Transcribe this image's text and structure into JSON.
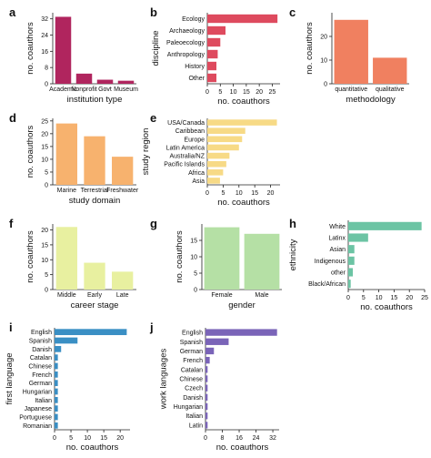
{
  "chart_data": [
    {
      "id": "a",
      "type": "bar",
      "orientation": "vertical",
      "color": "#b0255e",
      "categories": [
        "Academic",
        "Nonprofit",
        "Govt",
        "Museum"
      ],
      "values": [
        33,
        5,
        2,
        1.5
      ],
      "xlabel": "institution type",
      "ylabel": "no. coauthors",
      "ylim": [
        0,
        35
      ],
      "yticks": [
        0,
        8,
        16,
        24,
        32
      ]
    },
    {
      "id": "b",
      "type": "bar",
      "orientation": "horizontal",
      "color": "#de4a5e",
      "categories": [
        "Ecology",
        "Archaeology",
        "Paleoecology",
        "Anthropology",
        "History",
        "Other"
      ],
      "values": [
        27,
        7,
        5,
        4,
        3.5,
        3.5
      ],
      "xlabel": "no. coauthors",
      "ylabel": "discipline",
      "xlim": [
        0,
        28
      ],
      "xticks": [
        0,
        5,
        10,
        15,
        20,
        25
      ]
    },
    {
      "id": "c",
      "type": "bar",
      "orientation": "vertical",
      "color": "#f08060",
      "categories": [
        "quantitative",
        "qualitative"
      ],
      "values": [
        27,
        11
      ],
      "xlabel": "methodology",
      "ylabel": "no. coauthors",
      "ylim": [
        0,
        30
      ],
      "yticks": [
        0,
        10,
        20
      ]
    },
    {
      "id": "d",
      "type": "bar",
      "orientation": "vertical",
      "color": "#f7b26e",
      "categories": [
        "Marine",
        "Terrestrial",
        "Freshwater"
      ],
      "values": [
        24,
        19,
        11
      ],
      "xlabel": "study domain",
      "ylabel": "no. coauthors",
      "ylim": [
        0,
        26
      ],
      "yticks": [
        0,
        5,
        10,
        15,
        20,
        25
      ]
    },
    {
      "id": "e",
      "type": "bar",
      "orientation": "horizontal",
      "color": "#f7da86",
      "categories": [
        "USA/Canada",
        "Caribbean",
        "Europe",
        "Latin America",
        "Australia/NZ",
        "Pacific Islands",
        "Africa",
        "Asia"
      ],
      "values": [
        22,
        12,
        11,
        10,
        7,
        6,
        5,
        4
      ],
      "xlabel": "no. coauthors",
      "ylabel": "study region",
      "xlim": [
        0,
        23
      ],
      "xticks": [
        0,
        5,
        10,
        15,
        20
      ]
    },
    {
      "id": "f",
      "type": "bar",
      "orientation": "vertical",
      "color": "#e8f0a0",
      "categories": [
        "Middle",
        "Early",
        "Late"
      ],
      "values": [
        21,
        9,
        6
      ],
      "xlabel": "career stage",
      "ylabel": "no. coauthors",
      "ylim": [
        0,
        22
      ],
      "yticks": [
        0,
        5,
        10,
        15,
        20
      ]
    },
    {
      "id": "g",
      "type": "bar",
      "orientation": "vertical",
      "color": "#b5e0a5",
      "categories": [
        "Female",
        "Male"
      ],
      "values": [
        19,
        17
      ],
      "xlabel": "gender",
      "ylabel": "no. coauthors",
      "ylim": [
        0,
        20
      ],
      "yticks": [
        0,
        5,
        10,
        15
      ]
    },
    {
      "id": "h",
      "type": "bar",
      "orientation": "horizontal",
      "color": "#6cc4a4",
      "categories": [
        "White",
        "Latinx",
        "Asian",
        "Indigenous",
        "other",
        "Black/African"
      ],
      "values": [
        24,
        6.5,
        2,
        2,
        1.5,
        0.8
      ],
      "xlabel": "no. coauthors",
      "ylabel": "ethnicity",
      "xlim": [
        0,
        25
      ],
      "xticks": [
        0,
        5,
        10,
        15,
        20,
        25
      ]
    },
    {
      "id": "i",
      "type": "bar",
      "orientation": "horizontal",
      "color": "#3a8fc4",
      "categories": [
        "English",
        "Spanish",
        "Danish",
        "Catalan",
        "Chinese",
        "French",
        "German",
        "Hungarian",
        "Italian",
        "Japanese",
        "Portuguese",
        "Romanian"
      ],
      "values": [
        22,
        7,
        2,
        1,
        1,
        1,
        1,
        1,
        1,
        1,
        1,
        1
      ],
      "xlabel": "no. coauthors",
      "ylabel": "first language",
      "xlim": [
        0,
        23
      ],
      "xticks": [
        0,
        5,
        10,
        15,
        20
      ]
    },
    {
      "id": "j",
      "type": "bar",
      "orientation": "horizontal",
      "color": "#7a64b8",
      "categories": [
        "English",
        "Spanish",
        "German",
        "French",
        "Catalan",
        "Chinese",
        "Czech",
        "Danish",
        "Hungarian",
        "Italian",
        "Latin"
      ],
      "values": [
        34,
        11,
        4,
        2,
        1,
        1,
        1,
        1,
        1,
        1,
        1
      ],
      "xlabel": "no. coauthors",
      "ylabel": "work languages",
      "xlim": [
        0,
        35
      ],
      "xticks": [
        0,
        8,
        16,
        24,
        32
      ]
    }
  ]
}
